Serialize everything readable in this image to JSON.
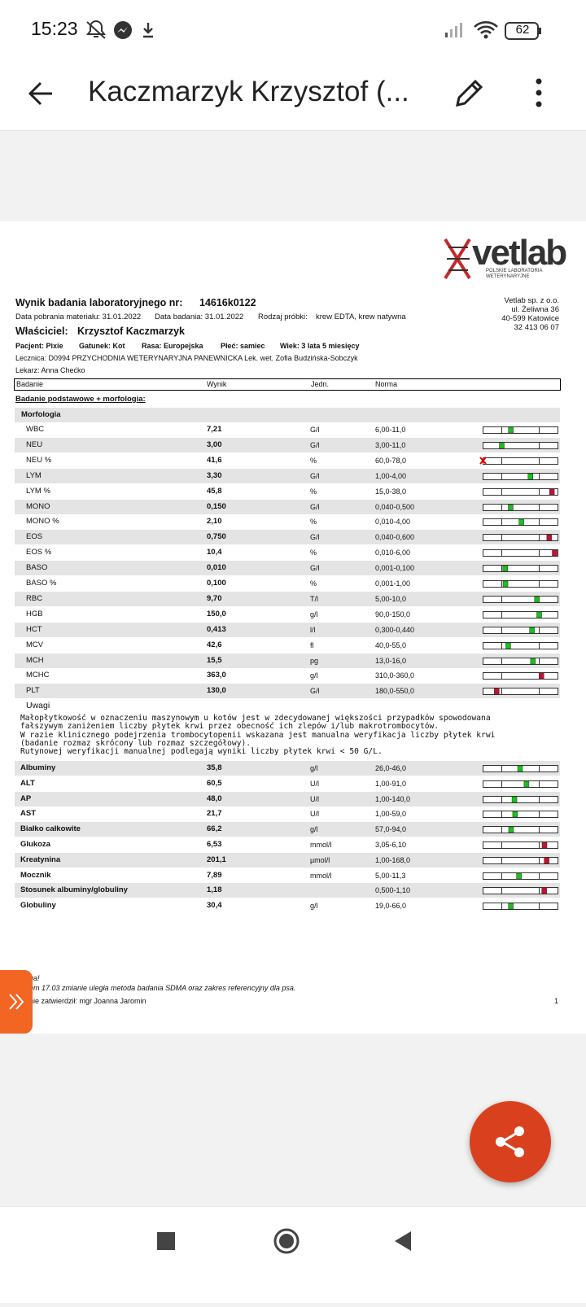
{
  "status_bar": {
    "time": "15:23",
    "battery": "62"
  },
  "app_bar": {
    "title": "Kaczmarzyk Krzysztof (..."
  },
  "document": {
    "logo": {
      "brand": "vetlab",
      "line1": "POLSKIE LABORATORIA",
      "line2": "WETERYNARYJNE"
    },
    "lab_address": [
      "Vetlab sp. z o.o.",
      "ul. Żeliwna 36",
      "40-599 Katowice",
      "32 413 06 07"
    ],
    "title": {
      "label": "Wynik badania laboratoryjnego nr:",
      "number": "14616k0122"
    },
    "meta": [
      "Data pobrania materiału: 31.01.2022",
      "Data badania: 31.01.2022",
      "Rodzaj próbki:",
      "krew EDTA, krew natywna"
    ],
    "owner": {
      "label": "Właściciel:",
      "name": "Krzysztof Kaczmarzyk"
    },
    "patient": [
      "Pacjent: Pixie",
      "Gatunek: Kot",
      "Rasa: Europejska",
      "Płeć: samiec",
      "Wiek: 3 lata 5 miesięcy"
    ],
    "clinic": "Lecznica:  D0994  PRZYCHODNIA WETERYNARYJNA PANEWNICKA  Lek. wet. Zofia Budzińska-Sobczyk",
    "doctor": "Lekarz: Anna Chećko",
    "table_header": [
      "Badanie",
      "Wynik",
      "Jedn.",
      "Norma"
    ],
    "section": "Badanie podstawowe + morfologia:",
    "group": "Morfologia",
    "morphology": [
      [
        "WBC",
        "7,21",
        "G/l",
        "6,00-11,0"
      ],
      [
        "NEU",
        "3,00",
        "G/l",
        "3,00-11,0"
      ],
      [
        "NEU %",
        "41,6",
        "%",
        "60,0-78,0"
      ],
      [
        "LYM",
        "3,30",
        "G/l",
        "1,00-4,00"
      ],
      [
        "LYM %",
        "45,8",
        "%",
        "15,0-38,0"
      ],
      [
        "MONO",
        "0,150",
        "G/l",
        "0,040-0,500"
      ],
      [
        "MONO %",
        "2,10",
        "%",
        "0,010-4,00"
      ],
      [
        "EOS",
        "0,750",
        "G/l",
        "0,040-0,600"
      ],
      [
        "EOS %",
        "10,4",
        "%",
        "0,010-6,00"
      ],
      [
        "BASO",
        "0,010",
        "G/l",
        "0,001-0,100"
      ],
      [
        "BASO %",
        "0,100",
        "%",
        "0,001-1,00"
      ],
      [
        "RBC",
        "9,70",
        "T/l",
        "5,00-10,0"
      ],
      [
        "HGB",
        "150,0",
        "g/l",
        "90,0-150,0"
      ],
      [
        "HCT",
        "0,413",
        "l/l",
        "0,300-0,440"
      ],
      [
        "MCV",
        "42,6",
        "fl",
        "40,0-55,0"
      ],
      [
        "MCH",
        "15,5",
        "pg",
        "13,0-16,0"
      ],
      [
        "MCHC",
        "363,0",
        "g/l",
        "310,0-360,0"
      ],
      [
        "PLT",
        "130,0",
        "G/l",
        "180,0-550,0"
      ]
    ],
    "notes_label": "Uwagi",
    "notes": [
      "Małopłytkowość w oznaczeniu maszynowym u kotów jest w zdecydowanej większości przypadków spowodowana",
      "fałszywym zaniżeniem liczby płytek krwi przez obecność ich zlepów i/lub makrotrombocytów.",
      "W razie klinicznego podejrzenia trombocytopenii wskazana jest manualna weryfikacja liczby płytek krwi",
      "(badanie rozmaz skrócony lub rozmaz szczegółowy).",
      "Rutynowej weryfikacji manualnej podlegają wyniki liczby płytek krwi < 50 G/L."
    ],
    "chemistry": [
      [
        "Albuminy",
        "35,8",
        "g/l",
        "26,0-46,0"
      ],
      [
        "ALT",
        "60,5",
        "U/l",
        "1,00-91,0"
      ],
      [
        "AP",
        "48,0",
        "U/l",
        "1,00-140,0"
      ],
      [
        "AST",
        "21,7",
        "U/l",
        "1,00-59,0"
      ],
      [
        "Białko całkowite",
        "66,2",
        "g/l",
        "57,0-94,0"
      ],
      [
        "Glukoza",
        "6,53",
        "mmol/l",
        "3,05-6,10"
      ],
      [
        "Kreatynina",
        "201,1",
        "µmol/l",
        "1,00-168,0"
      ],
      [
        "Mocznik",
        "7,89",
        "mmol/l",
        "5,00-11,3"
      ],
      [
        "Stosunek albuminy/globuliny",
        "1,18",
        null,
        "0,500-1,10"
      ],
      [
        "Globuliny",
        "30,4",
        "g/l",
        "19,0-66,0"
      ]
    ],
    "footer": [
      "ga!",
      "em 17.03 zmianie uległa metoda badania SDMA oraz zakres referencyjny dla psa.",
      "nie zatwierdził: mgr Joanna Jaromin"
    ],
    "page_number": "1"
  }
}
